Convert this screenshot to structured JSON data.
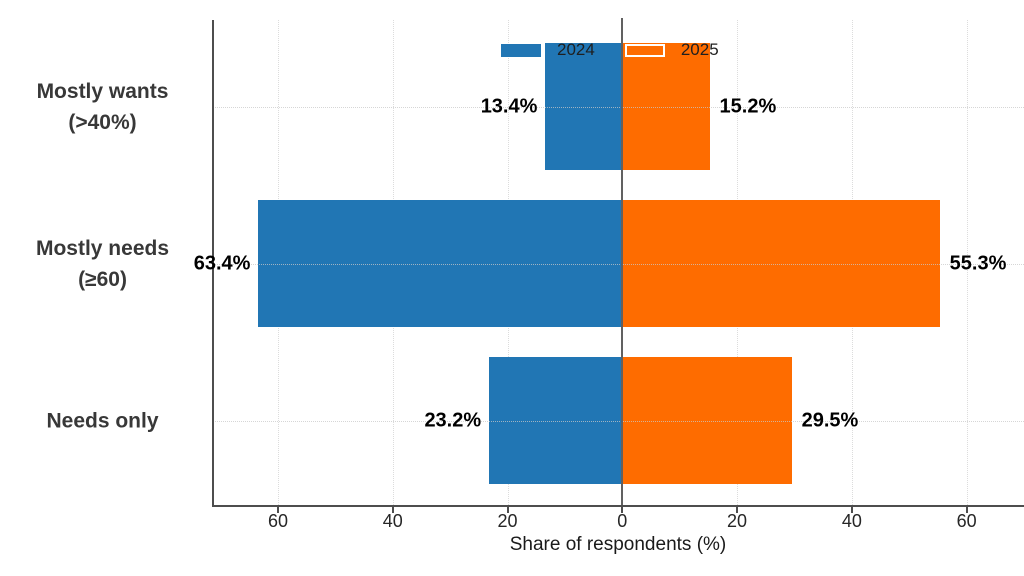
{
  "chart_data": {
    "type": "bar",
    "variant": "diverging-horizontal",
    "title": "",
    "xlabel": "Share of respondents (%)",
    "categories": [
      {
        "lines": [
          "Mostly wants",
          "(>40%)"
        ]
      },
      {
        "lines": [
          "Mostly needs",
          "(≥60)"
        ]
      },
      {
        "lines": [
          "Needs only"
        ]
      }
    ],
    "series": [
      {
        "name": "2024",
        "side": "left",
        "color": "#2176b4",
        "values": [
          13.4,
          63.4,
          23.2
        ],
        "labels": [
          "13.4%",
          "63.4%",
          "23.2%"
        ]
      },
      {
        "name": "2025",
        "side": "right",
        "color": "#fe6c00",
        "swatch_edge": "#ffffff",
        "values": [
          15.2,
          55.3,
          29.5
        ],
        "labels": [
          "15.2%",
          "55.3%",
          "29.5%"
        ]
      }
    ],
    "x_ticks": [
      -60,
      -40,
      -20,
      0,
      20,
      40,
      60
    ],
    "x_tick_labels": [
      "60",
      "40",
      "20",
      "0",
      "20",
      "40",
      "60"
    ],
    "xlim": [
      -71.5,
      70
    ],
    "grid": true,
    "legend_position": "top-center",
    "axis_color": "#4d4d4d",
    "zero_line_color": "#616161",
    "value_label_color": "#000000",
    "category_label_color": "#383838"
  }
}
